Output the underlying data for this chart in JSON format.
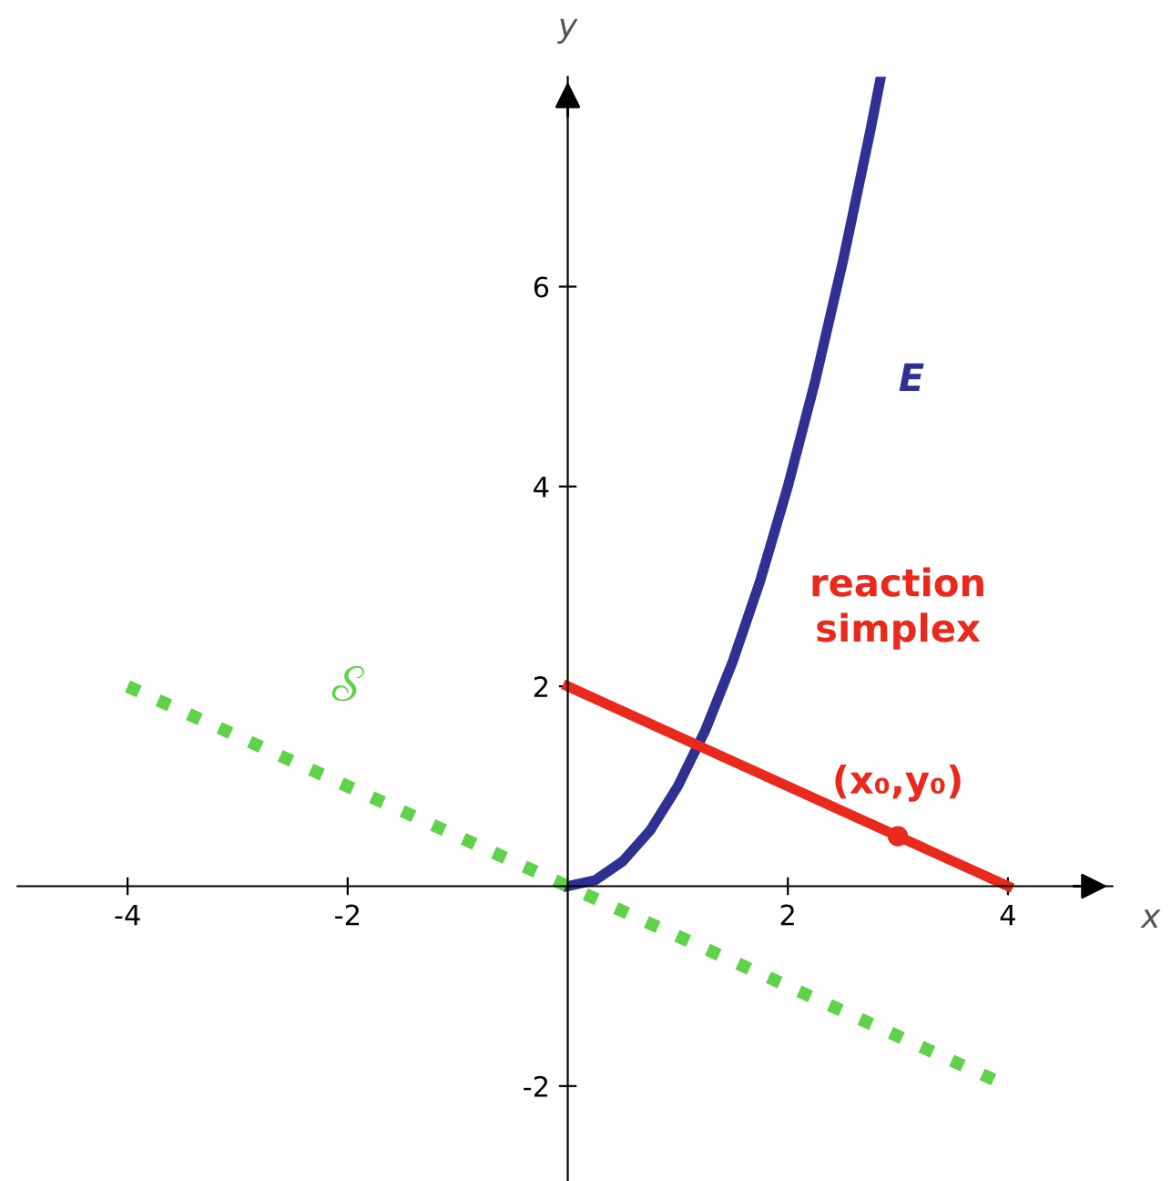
{
  "chart_data": {
    "type": "line",
    "xlabel": "x",
    "ylabel": "y",
    "xlim": [
      -5.0,
      4.95
    ],
    "ylim": [
      -2.95,
      8.1
    ],
    "xticks": [
      -4,
      -2,
      2,
      4
    ],
    "yticks": [
      -2,
      2,
      4,
      6
    ],
    "grid": false,
    "series": [
      {
        "name": "E",
        "color": "#2e3192",
        "x": [
          0,
          0.25,
          0.5,
          0.75,
          1,
          1.25,
          1.5,
          1.75,
          2,
          2.25,
          2.5,
          2.75,
          2.84
        ],
        "values": [
          0,
          0.06,
          0.25,
          0.56,
          1,
          1.56,
          2.25,
          3.06,
          4,
          5.06,
          6.25,
          7.56,
          8.07
        ],
        "line_style": "solid"
      },
      {
        "name": "reaction\nsimplex",
        "color": "#e8291c",
        "x": [
          0,
          4
        ],
        "values": [
          2,
          0
        ],
        "line_style": "solid"
      },
      {
        "name": "𝒮",
        "color": "#5fd14a",
        "x": [
          -4,
          4
        ],
        "values": [
          2,
          -2
        ],
        "line_style": "dotted"
      },
      {
        "type": "scatter",
        "color": "#e8291c",
        "x": [
          3
        ],
        "values": [
          0.5
        ],
        "marker": "circle"
      }
    ],
    "annotations": [
      {
        "text": "(x₀,y₀)",
        "x": 3,
        "y": 0.5
      }
    ]
  }
}
